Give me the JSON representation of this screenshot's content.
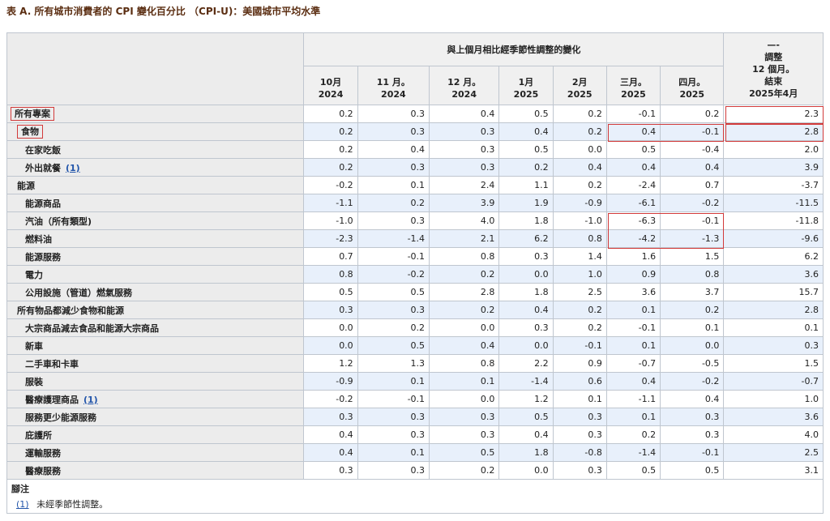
{
  "title": "表 A. 所有城市消費者的 CPI 變化百分比 （CPI-U)：美國城市平均水準",
  "header": {
    "span_label": "與上個月相比經季節性調整的變化",
    "last_col": [
      "—-",
      "調整",
      "12 個月。",
      "結束",
      "2025年4月"
    ],
    "months": [
      {
        "m": "10月",
        "y": "2024"
      },
      {
        "m": "11 月。",
        "y": "2024"
      },
      {
        "m": "12 月。",
        "y": "2024"
      },
      {
        "m": "1月",
        "y": "2025"
      },
      {
        "m": "2月",
        "y": "2025"
      },
      {
        "m": "三月。",
        "y": "2025"
      },
      {
        "m": "四月。",
        "y": "2025"
      }
    ]
  },
  "rows": [
    {
      "label": "所有專案",
      "indent": 0,
      "boxed_label": true,
      "values": [
        "0.2",
        "0.3",
        "0.4",
        "0.5",
        "0.2",
        "-0.1",
        "0.2",
        "2.3"
      ]
    },
    {
      "label": "食物",
      "indent": 1,
      "boxed_label": true,
      "values": [
        "0.2",
        "0.3",
        "0.3",
        "0.4",
        "0.2",
        "0.4",
        "-0.1",
        "2.8"
      ]
    },
    {
      "label": "在家吃飯",
      "indent": 2,
      "values": [
        "0.2",
        "0.4",
        "0.3",
        "0.5",
        "0.0",
        "0.5",
        "-0.4",
        "2.0"
      ]
    },
    {
      "label": "外出就餐",
      "indent": 2,
      "footnote": "(1)",
      "values": [
        "0.2",
        "0.3",
        "0.3",
        "0.2",
        "0.4",
        "0.4",
        "0.4",
        "3.9"
      ]
    },
    {
      "label": "能源",
      "indent": 1,
      "values": [
        "-0.2",
        "0.1",
        "2.4",
        "1.1",
        "0.2",
        "-2.4",
        "0.7",
        "-3.7"
      ]
    },
    {
      "label": "能源商品",
      "indent": 2,
      "values": [
        "-1.1",
        "0.2",
        "3.9",
        "1.9",
        "-0.9",
        "-6.1",
        "-0.2",
        "-11.5"
      ]
    },
    {
      "label": "汽油（所有類型)",
      "indent": 2,
      "values": [
        "-1.0",
        "0.3",
        "4.0",
        "1.8",
        "-1.0",
        "-6.3",
        "-0.1",
        "-11.8"
      ]
    },
    {
      "label": "燃料油",
      "indent": 2,
      "values": [
        "-2.3",
        "-1.4",
        "2.1",
        "6.2",
        "0.8",
        "-4.2",
        "-1.3",
        "-9.6"
      ]
    },
    {
      "label": "能源服務",
      "indent": 2,
      "values": [
        "0.7",
        "-0.1",
        "0.8",
        "0.3",
        "1.4",
        "1.6",
        "1.5",
        "6.2"
      ]
    },
    {
      "label": "電力",
      "indent": 2,
      "values": [
        "0.8",
        "-0.2",
        "0.2",
        "0.0",
        "1.0",
        "0.9",
        "0.8",
        "3.6"
      ]
    },
    {
      "label": "公用設施（管道）燃氣服務",
      "indent": 2,
      "values": [
        "0.5",
        "0.5",
        "2.8",
        "1.8",
        "2.5",
        "3.6",
        "3.7",
        "15.7"
      ]
    },
    {
      "label": "所有物品都減少食物和能源",
      "indent": 1,
      "values": [
        "0.3",
        "0.3",
        "0.2",
        "0.4",
        "0.2",
        "0.1",
        "0.2",
        "2.8"
      ]
    },
    {
      "label": "大宗商品減去食品和能源大宗商品",
      "indent": 2,
      "values": [
        "0.0",
        "0.2",
        "0.0",
        "0.3",
        "0.2",
        "-0.1",
        "0.1",
        "0.1"
      ]
    },
    {
      "label": "新車",
      "indent": 2,
      "values": [
        "0.0",
        "0.5",
        "0.4",
        "0.0",
        "-0.1",
        "0.1",
        "0.0",
        "0.3"
      ]
    },
    {
      "label": "二手車和卡車",
      "indent": 2,
      "values": [
        "1.2",
        "1.3",
        "0.8",
        "2.2",
        "0.9",
        "-0.7",
        "-0.5",
        "1.5"
      ]
    },
    {
      "label": "服裝",
      "indent": 2,
      "values": [
        "-0.9",
        "0.1",
        "0.1",
        "-1.4",
        "0.6",
        "0.4",
        "-0.2",
        "-0.7"
      ]
    },
    {
      "label": "醫療護理商品",
      "indent": 2,
      "footnote": "(1)",
      "values": [
        "-0.2",
        "-0.1",
        "0.0",
        "1.2",
        "0.1",
        "-1.1",
        "0.4",
        "1.0"
      ]
    },
    {
      "label": "服務更少能源服務",
      "indent": 2,
      "values": [
        "0.3",
        "0.3",
        "0.3",
        "0.5",
        "0.3",
        "0.1",
        "0.3",
        "3.6"
      ]
    },
    {
      "label": "庇護所",
      "indent": 2,
      "values": [
        "0.4",
        "0.3",
        "0.3",
        "0.4",
        "0.3",
        "0.2",
        "0.3",
        "4.0"
      ]
    },
    {
      "label": "運輸服務",
      "indent": 2,
      "values": [
        "0.4",
        "0.1",
        "0.5",
        "1.8",
        "-0.8",
        "-1.4",
        "-0.1",
        "2.5"
      ]
    },
    {
      "label": "醫療服務",
      "indent": 2,
      "values": [
        "0.3",
        "0.3",
        "0.2",
        "0.0",
        "0.3",
        "0.5",
        "0.5",
        "3.1"
      ]
    }
  ],
  "footnotes": {
    "title": "腳注",
    "items": [
      {
        "ref": "(1)",
        "text": "未經季節性調整。"
      }
    ]
  },
  "highlight_color": "#d23a3a"
}
